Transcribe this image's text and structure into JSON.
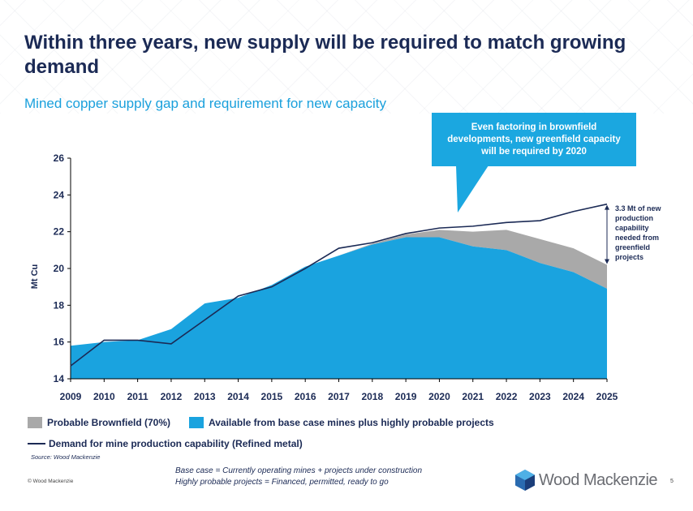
{
  "slide": {
    "title": "Within three years, new supply will be required to match growing demand",
    "subtitle": "Mined copper supply gap and requirement for new capacity",
    "callout": "Even factoring in brownfield developments, new greenfield capacity will be required by 2020",
    "gap_annotation": [
      "3.3 Mt of new",
      "production",
      "capability",
      "needed from",
      "greenfield",
      "projects"
    ],
    "legend": {
      "brownfield": "Probable Brownfield (70%)",
      "base": "Available from base case mines plus highly probable projects",
      "demand": "Demand for mine production capability (Refined metal)"
    },
    "source": "Source: Wood Mackenzie",
    "copyright": "© Wood Mackenzie",
    "footnotes": [
      "Base case = Currently operating mines + projects under construction",
      "Highly probable projects =  Financed, permitted, ready to go"
    ],
    "logo_text": "Wood Mackenzie",
    "page_number": "5"
  },
  "colors": {
    "navy": "#1b2a55",
    "base_area": "#1aa3df",
    "brownfield_area": "#a9a9a9",
    "demand_line": "#1b2a55",
    "subtitle": "#1aa0dc",
    "callout_bg": "#1ba7e0"
  },
  "chart_data": {
    "type": "area",
    "x": [
      2009,
      2010,
      2011,
      2012,
      2013,
      2014,
      2015,
      2016,
      2017,
      2018,
      2019,
      2020,
      2021,
      2022,
      2023,
      2024,
      2025
    ],
    "ylabel": "Mt Cu",
    "ylim": [
      14,
      26
    ],
    "yticks": [
      14,
      16,
      18,
      20,
      22,
      24,
      26
    ],
    "series": [
      {
        "name": "Available from base case mines plus highly probable projects",
        "kind": "area",
        "values": [
          15.8,
          16.0,
          16.1,
          16.7,
          18.1,
          18.4,
          19.1,
          20.1,
          20.7,
          21.3,
          21.7,
          21.7,
          21.2,
          21.0,
          20.3,
          19.8,
          18.9
        ]
      },
      {
        "name": "Probable Brownfield (70%)",
        "kind": "stacked-area",
        "values": [
          0,
          0,
          0,
          0,
          0,
          0,
          0,
          0,
          0,
          0.05,
          0.15,
          0.4,
          0.8,
          1.1,
          1.3,
          1.3,
          1.3
        ]
      },
      {
        "name": "Demand for mine production capability (Refined metal)",
        "kind": "line",
        "values": [
          14.7,
          16.1,
          16.1,
          15.9,
          17.2,
          18.5,
          19.0,
          20.0,
          21.1,
          21.4,
          21.9,
          22.2,
          22.3,
          22.5,
          22.6,
          23.1,
          23.5
        ]
      }
    ],
    "grid": false
  }
}
